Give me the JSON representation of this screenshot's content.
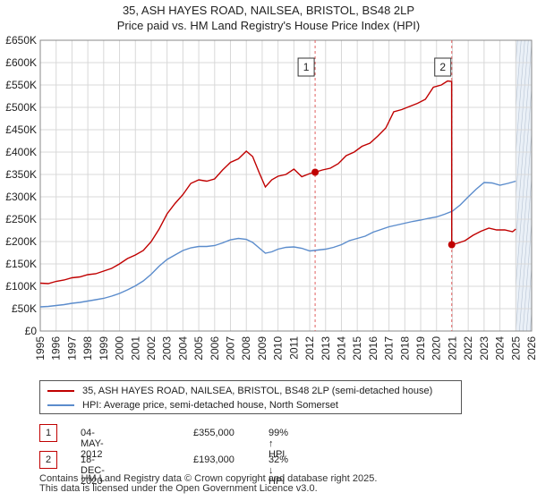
{
  "title_line1": "35, ASH HAYES ROAD, NAILSEA, BRISTOL, BS48 2LP",
  "title_line2": "Price paid vs. HM Land Registry's House Price Index (HPI)",
  "legend": {
    "property_label": "35, ASH HAYES ROAD, NAILSEA, BRISTOL, BS48 2LP (semi-detached house)",
    "hpi_label": "HPI: Average price, semi-detached house, North Somerset"
  },
  "transactions": [
    {
      "num": "1",
      "date": "04-MAY-2012",
      "price": "£355,000",
      "hpi": "99% ↑ HPI"
    },
    {
      "num": "2",
      "date": "18-DEC-2020",
      "price": "£193,000",
      "hpi": "32% ↓ HPI"
    }
  ],
  "footer": {
    "line1": "Contains HM Land Registry data © Crown copyright and database right 2025.",
    "line2": "This data is licensed under the Open Government Licence v3.0."
  },
  "chart_data": {
    "type": "line",
    "title": "Price paid vs. HM Land Registry's House Price Index (HPI)",
    "xlabel": "",
    "ylabel": "",
    "xlim": [
      1995,
      2026
    ],
    "ylim": [
      0,
      650000
    ],
    "x_ticks": [
      1995,
      1996,
      1997,
      1998,
      1999,
      2000,
      2001,
      2002,
      2003,
      2004,
      2005,
      2006,
      2007,
      2008,
      2009,
      2010,
      2011,
      2012,
      2013,
      2014,
      2015,
      2016,
      2017,
      2018,
      2019,
      2020,
      2021,
      2022,
      2023,
      2024,
      2025,
      2026
    ],
    "y_ticks": [
      0,
      50000,
      100000,
      150000,
      200000,
      250000,
      300000,
      350000,
      400000,
      450000,
      500000,
      550000,
      600000,
      650000
    ],
    "y_tick_labels": [
      "£0",
      "£50K",
      "£100K",
      "£150K",
      "£200K",
      "£250K",
      "£300K",
      "£350K",
      "£400K",
      "£450K",
      "£500K",
      "£550K",
      "£600K",
      "£650K"
    ],
    "grid": true,
    "colors": {
      "property": "#c00000",
      "hpi": "#5b8ccc",
      "marker_line": "#e06060",
      "shade": "#dce6f2"
    },
    "series": [
      {
        "name": "35, ASH HAYES ROAD, NAILSEA, BRISTOL, BS48 2LP (semi-detached house)",
        "x": [
          1995.0,
          1995.5,
          1996.0,
          1996.5,
          1997.0,
          1997.5,
          1998.0,
          1998.5,
          1999.0,
          1999.5,
          2000.0,
          2000.5,
          2001.0,
          2001.5,
          2002.0,
          2002.5,
          2003.0,
          2003.5,
          2004.0,
          2004.5,
          2005.0,
          2005.5,
          2006.0,
          2006.5,
          2007.0,
          2007.5,
          2008.0,
          2008.4,
          2008.8,
          2009.2,
          2009.6,
          2010.0,
          2010.5,
          2011.0,
          2011.5,
          2012.0,
          2012.34,
          2012.8,
          2013.3,
          2013.8,
          2014.3,
          2014.8,
          2015.3,
          2015.8,
          2016.3,
          2016.8,
          2017.3,
          2017.8,
          2018.3,
          2018.8,
          2019.3,
          2019.8,
          2020.3,
          2020.7,
          2020.95,
          2020.96,
          2021.3,
          2021.8,
          2022.3,
          2022.8,
          2023.3,
          2023.8,
          2024.3,
          2024.8,
          2025.0
        ],
        "values": [
          107000,
          106000,
          111000,
          114000,
          119000,
          121000,
          126000,
          128000,
          134000,
          140000,
          150000,
          162000,
          170000,
          180000,
          200000,
          228000,
          262000,
          285000,
          305000,
          330000,
          338000,
          335000,
          340000,
          360000,
          377000,
          385000,
          402000,
          390000,
          355000,
          322000,
          338000,
          346000,
          350000,
          362000,
          345000,
          352000,
          355000,
          360000,
          364000,
          374000,
          392000,
          400000,
          413000,
          420000,
          436000,
          454000,
          490000,
          495000,
          502000,
          509000,
          518000,
          545000,
          550000,
          559000,
          558000,
          193000,
          196000,
          202000,
          214000,
          223000,
          230000,
          226000,
          226000,
          222000,
          228000
        ]
      },
      {
        "name": "HPI: Average price, semi-detached house, North Somerset",
        "x": [
          1995.0,
          1995.5,
          1996.0,
          1996.5,
          1997.0,
          1997.5,
          1998.0,
          1998.5,
          1999.0,
          1999.5,
          2000.0,
          2000.5,
          2001.0,
          2001.5,
          2002.0,
          2002.5,
          2003.0,
          2003.5,
          2004.0,
          2004.5,
          2005.0,
          2005.5,
          2006.0,
          2006.5,
          2007.0,
          2007.5,
          2008.0,
          2008.4,
          2008.8,
          2009.2,
          2009.6,
          2010.0,
          2010.5,
          2011.0,
          2011.5,
          2012.0,
          2012.5,
          2013.0,
          2013.5,
          2014.0,
          2014.5,
          2015.0,
          2015.5,
          2016.0,
          2016.5,
          2017.0,
          2017.5,
          2018.0,
          2018.5,
          2019.0,
          2019.5,
          2020.0,
          2020.5,
          2021.0,
          2021.5,
          2022.0,
          2022.5,
          2023.0,
          2023.5,
          2024.0,
          2024.5,
          2025.0
        ],
        "values": [
          54000,
          55000,
          57000,
          59000,
          62000,
          64000,
          67000,
          70000,
          73000,
          78000,
          84000,
          92000,
          101000,
          112000,
          127000,
          145000,
          160000,
          170000,
          180000,
          186000,
          189000,
          189000,
          191000,
          197000,
          204000,
          207000,
          205000,
          198000,
          186000,
          174000,
          177000,
          183000,
          187000,
          188000,
          185000,
          179000,
          181000,
          183000,
          187000,
          193000,
          202000,
          207000,
          212000,
          221000,
          227000,
          233000,
          237000,
          241000,
          245000,
          248000,
          252000,
          255000,
          261000,
          268000,
          282000,
          300000,
          317000,
          332000,
          331000,
          326000,
          330000,
          335000
        ]
      }
    ],
    "sale_points": [
      {
        "label": "1",
        "x": 2012.34,
        "value": 355000
      },
      {
        "label": "2",
        "x": 2020.96,
        "value": 193000
      }
    ],
    "annotations": [
      "1",
      "2"
    ],
    "forecast_start": 2025.0
  }
}
